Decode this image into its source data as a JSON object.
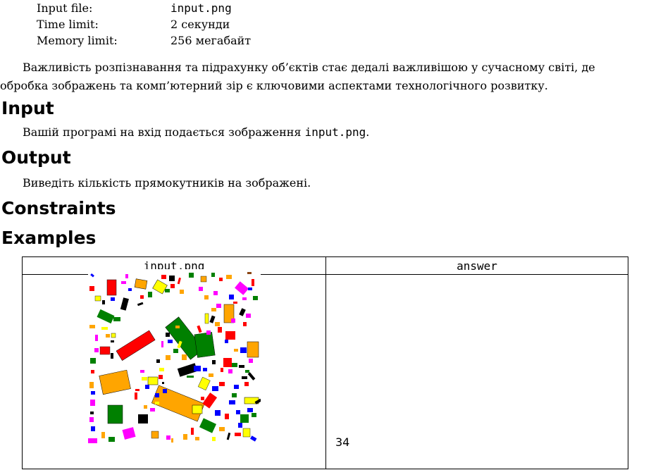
{
  "limits": [
    {
      "key": "Input file:",
      "value": "input.png",
      "mono": true
    },
    {
      "key": "Time limit:",
      "value": "2 секунди",
      "mono": false
    },
    {
      "key": "Memory limit:",
      "value": "256 мегабайт",
      "mono": false
    }
  ],
  "statement": {
    "line1": "Важливість розпізнавання та підрахунку об’єктів стає дедалі важливішою у сучасному світі, де",
    "line2": "обробка зображень та комп’ютерний зір є ключовими аспектами технологічного розвитку."
  },
  "input_section": {
    "heading": "Input",
    "text_before": "Вашій програмі на вхід подається зображення ",
    "filename": "input.png",
    "text_after": "."
  },
  "output_section": {
    "heading": "Output",
    "text": "Виведіть кількість прямокутників на зображені."
  },
  "constraints_section": {
    "heading": "Constraints"
  },
  "examples_section": {
    "heading": "Examples",
    "columns": [
      "input.png",
      "answer"
    ],
    "answer": "34"
  },
  "colors": {
    "red": "#ff0000",
    "green": "#008000",
    "orange": "#ffa500",
    "yellow": "#ffff00",
    "blue": "#0000ff",
    "magenta": "#ff00ff",
    "black": "#000000",
    "brown": "#8b4513"
  }
}
